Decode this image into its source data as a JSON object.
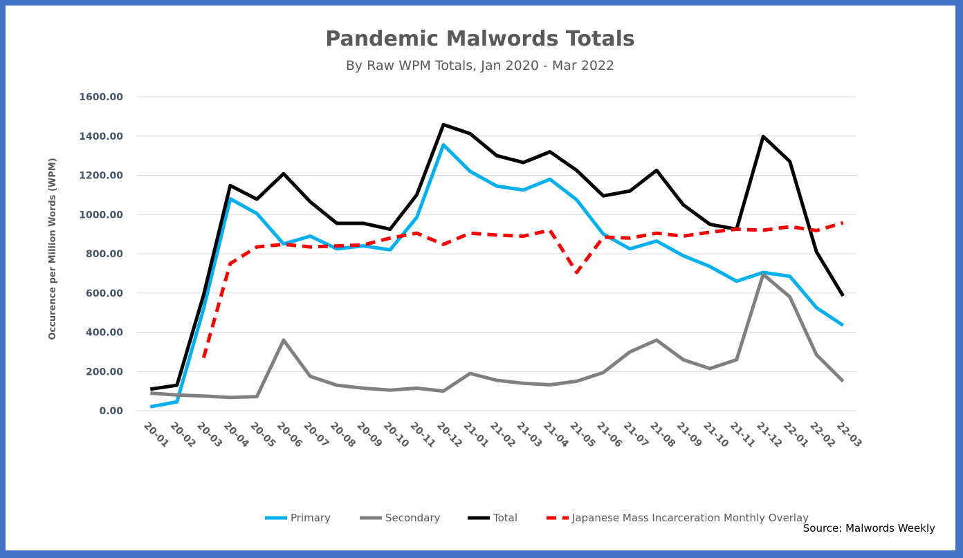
{
  "chart_data": {
    "type": "line",
    "title": "Pandemic Malwords Totals",
    "subtitle": "By Raw WPM Totals, Jan 2020 - Mar 2022",
    "ylabel": "Occurence per Million Words  (WPM)",
    "xlabel": "",
    "ylim": [
      0,
      1600
    ],
    "yticks": [
      "0.00",
      "200.00",
      "400.00",
      "600.00",
      "800.00",
      "1000.00",
      "1200.00",
      "1400.00",
      "1600.00"
    ],
    "grid": true,
    "legend_position": "bottom",
    "categories": [
      "20-01",
      "20-02",
      "20-03",
      "20-04",
      "20-05",
      "20-06",
      "20-07",
      "20-08",
      "20-09",
      "20-10",
      "20-11",
      "20-12",
      "21-01",
      "21-02",
      "21-03",
      "21-04",
      "21-05",
      "21-06",
      "21-07",
      "21-08",
      "21-09",
      "21-10",
      "21-11",
      "21-12",
      "22-01",
      "22-02",
      "22-03"
    ],
    "series": [
      {
        "name": "Primary",
        "color": "#00b0f0",
        "dash": false,
        "values": [
          20,
          45,
          520,
          1080,
          1005,
          850,
          890,
          825,
          840,
          820,
          985,
          1355,
          1220,
          1145,
          1125,
          1180,
          1075,
          900,
          825,
          865,
          790,
          735,
          660,
          705,
          685,
          525,
          435
        ]
      },
      {
        "name": "Secondary",
        "color": "#808080",
        "dash": false,
        "values": [
          90,
          80,
          75,
          68,
          72,
          360,
          175,
          130,
          115,
          105,
          115,
          100,
          190,
          155,
          140,
          132,
          150,
          195,
          300,
          360,
          260,
          215,
          260,
          695,
          580,
          285,
          150
        ]
      },
      {
        "name": "Total",
        "color": "#000000",
        "dash": false,
        "values": [
          110,
          130,
          590,
          1148,
          1078,
          1208,
          1065,
          955,
          955,
          925,
          1100,
          1458,
          1412,
          1300,
          1265,
          1320,
          1225,
          1095,
          1120,
          1225,
          1050,
          950,
          925,
          1398,
          1270,
          810,
          585
        ]
      },
      {
        "name": "Japanese Mass Incarceration Monthly Overlay",
        "color": "#ff0000",
        "dash": true,
        "values": [
          null,
          null,
          270,
          750,
          835,
          848,
          835,
          840,
          845,
          880,
          905,
          848,
          905,
          895,
          890,
          920,
          705,
          885,
          880,
          905,
          890,
          910,
          925,
          920,
          938,
          918,
          958
        ]
      }
    ],
    "source": "Source: Malwords Weekly"
  }
}
